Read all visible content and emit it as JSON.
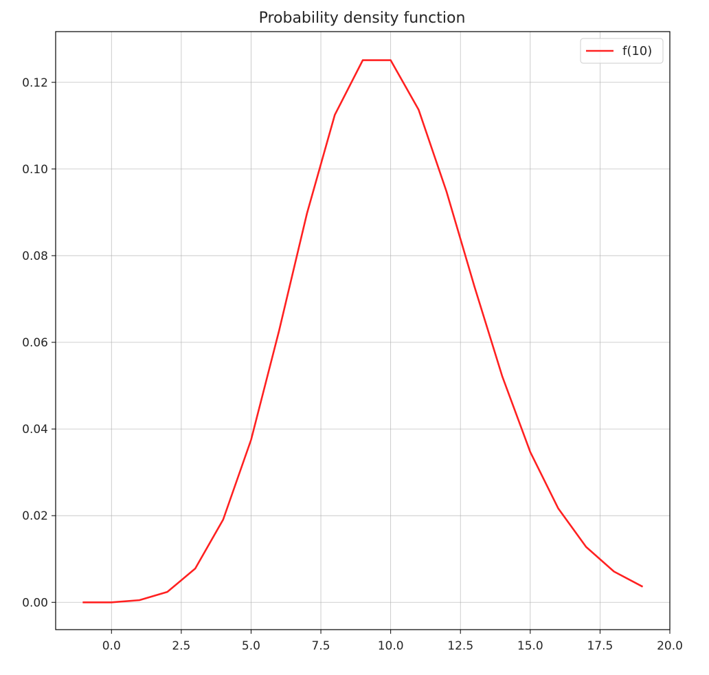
{
  "chart_data": {
    "type": "line",
    "title": "Probability density function",
    "xlabel": "",
    "ylabel": "",
    "xlim": [
      -2.0,
      20.0
    ],
    "ylim": [
      -0.0063,
      0.1317
    ],
    "xticks": [
      0.0,
      2.5,
      5.0,
      7.5,
      10.0,
      12.5,
      15.0,
      17.5,
      20.0
    ],
    "xtick_labels": [
      "0.0",
      "2.5",
      "5.0",
      "7.5",
      "10.0",
      "12.5",
      "15.0",
      "17.5",
      "20.0"
    ],
    "yticks": [
      0.0,
      0.02,
      0.04,
      0.06,
      0.08,
      0.1,
      0.12
    ],
    "ytick_labels": [
      "0.00",
      "0.02",
      "0.04",
      "0.06",
      "0.08",
      "0.10",
      "0.12"
    ],
    "grid": true,
    "legend_position": "top-right",
    "series": [
      {
        "name": "f(10)",
        "color": "#ff2020",
        "x": [
          -1,
          0,
          1,
          2,
          3,
          4,
          5,
          6,
          7,
          8,
          9,
          10,
          11,
          12,
          13,
          14,
          15,
          16,
          17,
          18,
          19
        ],
        "y": [
          0.0,
          0.0,
          0.0005,
          0.0024,
          0.0078,
          0.0191,
          0.0375,
          0.0626,
          0.0897,
          0.1125,
          0.1251,
          0.1251,
          0.1137,
          0.0948,
          0.0729,
          0.0521,
          0.0347,
          0.0217,
          0.0128,
          0.0071,
          0.0037
        ]
      }
    ]
  }
}
